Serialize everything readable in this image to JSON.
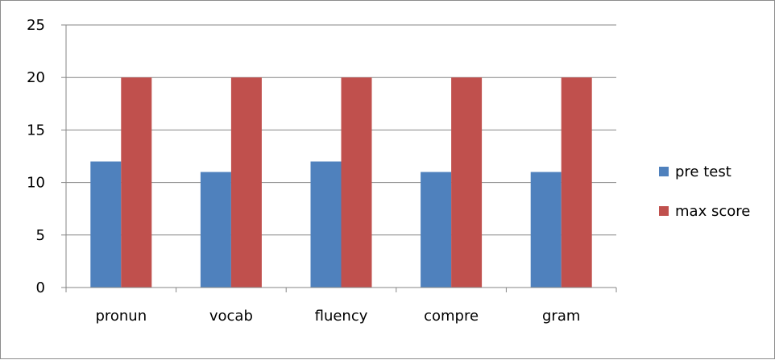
{
  "chart_data": {
    "type": "bar",
    "title": "",
    "xlabel": "",
    "ylabel": "",
    "categories": [
      "pronun",
      "vocab",
      "fluency",
      "compre",
      "gram"
    ],
    "series": [
      {
        "name": "pre test",
        "color": "#4f81bd",
        "values": [
          12,
          11,
          12,
          11,
          11
        ]
      },
      {
        "name": "max score",
        "color": "#c0504d",
        "values": [
          20,
          20,
          20,
          20,
          20
        ]
      }
    ],
    "ylim": [
      0,
      25
    ],
    "yticks": [
      "0",
      "5",
      "10",
      "15",
      "20",
      "25"
    ],
    "ytick_values": [
      0,
      5,
      10,
      15,
      20,
      25
    ],
    "grid": true,
    "legend_position": "right"
  }
}
